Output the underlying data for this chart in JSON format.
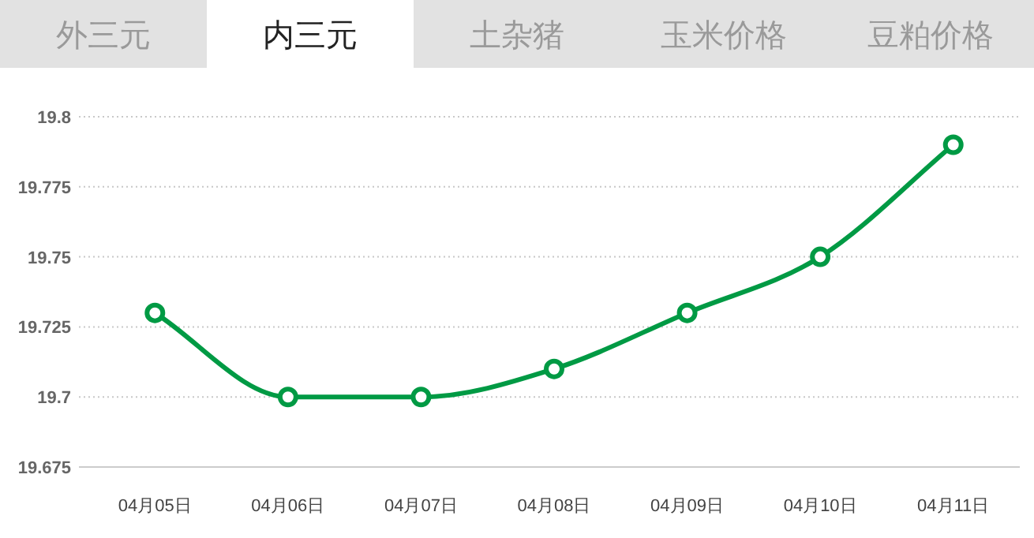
{
  "chart_data": {
    "type": "line",
    "title": "内三元",
    "annotations": [
      "外三元",
      "土杂猪",
      "玉米价格",
      "豆粕价格"
    ],
    "categories": [
      "04月05日",
      "04月06日",
      "04月07日",
      "04月08日",
      "04月09日",
      "04月10日",
      "04月11日"
    ],
    "series": [
      {
        "color": "#009a44",
        "values": [
          19.73,
          19.7,
          19.7,
          19.71,
          19.73,
          19.75,
          19.79
        ]
      }
    ],
    "ylim": [
      19.675,
      19.8
    ],
    "yticks": [
      19.675,
      19.7,
      19.725,
      19.75,
      19.775,
      19.8
    ],
    "grid": "y",
    "marker": "circle",
    "line_style": "solid"
  }
}
